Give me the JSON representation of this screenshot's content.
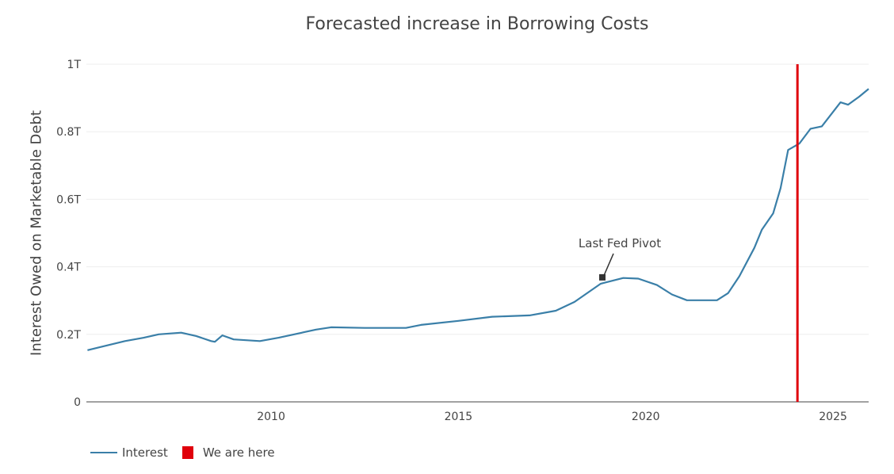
{
  "chart_data": {
    "type": "line",
    "title": "Forecasted increase in Borrowing Costs",
    "xlabel": "",
    "ylabel": "Interest Owed on Marketable Debt",
    "xlim": [
      2005.07,
      2025.95
    ],
    "ylim": [
      0,
      1.0
    ],
    "y_unit": "T (trillions USD)",
    "x_ticks": [
      2010,
      2015,
      2020,
      2025
    ],
    "y_ticks": [
      {
        "v": 0,
        "label": "0"
      },
      {
        "v": 0.2,
        "label": "0.2T"
      },
      {
        "v": 0.4,
        "label": "0.4T"
      },
      {
        "v": 0.6,
        "label": "0.6T"
      },
      {
        "v": 0.8,
        "label": "0.8T"
      },
      {
        "v": 1.0,
        "label": "1T"
      }
    ],
    "grid": {
      "horizontal": true,
      "vertical": false
    },
    "legend_position": "bottom-left",
    "series": [
      {
        "name": "Interest",
        "color": "#3a7fa8",
        "x": [
          2005.1,
          2006.1,
          2006.6,
          2007.0,
          2007.6,
          2008.0,
          2008.4,
          2008.5,
          2008.7,
          2009.0,
          2009.7,
          2010.2,
          2011.2,
          2011.6,
          2012.5,
          2013.6,
          2014.0,
          2015.0,
          2015.9,
          2016.9,
          2017.6,
          2018.1,
          2018.8,
          2019.4,
          2019.8,
          2020.3,
          2020.7,
          2021.1,
          2021.9,
          2022.2,
          2022.5,
          2022.9,
          2023.1,
          2023.4,
          2023.6,
          2023.8,
          2024.1,
          2024.4,
          2024.7,
          2025.2,
          2025.4,
          2025.7,
          2026.0
        ],
        "values": [
          0.153,
          0.18,
          0.19,
          0.2,
          0.205,
          0.195,
          0.18,
          0.178,
          0.197,
          0.185,
          0.18,
          0.19,
          0.214,
          0.221,
          0.219,
          0.219,
          0.228,
          0.24,
          0.252,
          0.256,
          0.27,
          0.296,
          0.35,
          0.367,
          0.365,
          0.346,
          0.318,
          0.301,
          0.301,
          0.322,
          0.372,
          0.456,
          0.51,
          0.558,
          0.633,
          0.746,
          0.765,
          0.809,
          0.816,
          0.887,
          0.88,
          0.904,
          0.927
        ]
      },
      {
        "name": "We are here",
        "color": "#e0000b",
        "type": "vertical-line",
        "x": 2024.05,
        "y_range": [
          0,
          1.0
        ]
      }
    ],
    "annotations": [
      {
        "text": "Last Fed Pivot",
        "x": 2018.8,
        "y": 0.35,
        "arrow": true
      }
    ]
  },
  "legend": {
    "interest_label": "Interest",
    "marker_label": "We are here"
  }
}
